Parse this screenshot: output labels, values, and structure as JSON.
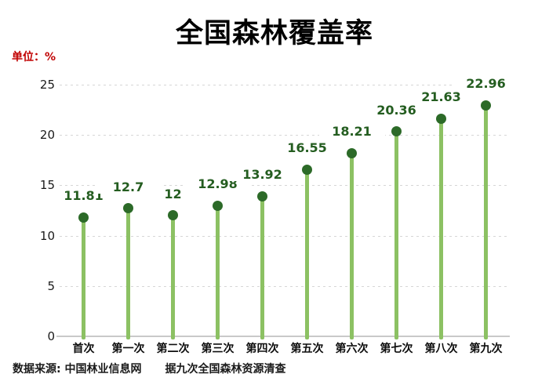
{
  "title": "全国森林覆盖率",
  "unit_label": "单位：%",
  "footer": {
    "source": "数据来源: 中国林业信息网",
    "note": "据九次全国森林资源清查"
  },
  "colors": {
    "stem_green": "#8cc163",
    "dot_green": "#2c6a28",
    "value_label_green": "#245d20",
    "unit_label_red": "#c00000",
    "gridline_gray": "#d6d6d6",
    "axis_gray": "#c9c9c9",
    "text_black": "#111111"
  },
  "chart_data": {
    "type": "bar",
    "variant": "lollipop",
    "title": "全国森林覆盖率",
    "unit": "%",
    "categories": [
      "首次",
      "第一次",
      "第二次",
      "第三次",
      "第四次",
      "第五次",
      "第六次",
      "第七次",
      "第八次",
      "第九次"
    ],
    "values": [
      11.81,
      12.7,
      12,
      12.98,
      13.92,
      16.55,
      18.21,
      20.36,
      21.63,
      22.96
    ],
    "value_labels": [
      "11.81",
      "12.7",
      "12",
      "12.98",
      "13.92",
      "16.55",
      "18.21",
      "20.36",
      "21.63",
      "22.96"
    ],
    "xlabel": "",
    "ylabel": "单位：%",
    "ylim": [
      0,
      25
    ],
    "yticks": [
      0,
      5,
      10,
      15,
      20,
      25
    ],
    "grid": "horizontal-dashed",
    "legend": "none",
    "source_note": "数据来源: 中国林业信息网  据九次全国森林资源清查"
  }
}
